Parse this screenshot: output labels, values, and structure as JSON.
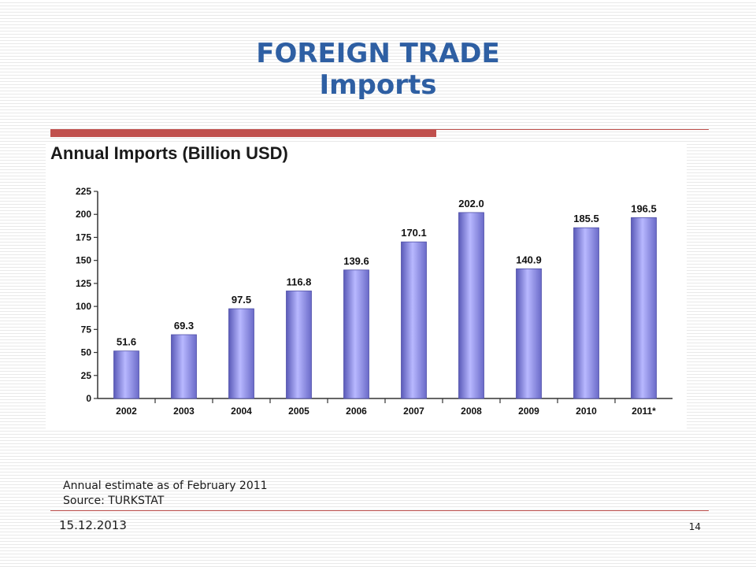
{
  "slide": {
    "title_line1": "FOREIGN TRADE",
    "title_line2": "Imports",
    "note_line1": "Annual estimate as of February 2011",
    "note_line2": "Source: TURKSTAT",
    "date": "15.12.2013",
    "page_number": "14"
  },
  "colors": {
    "title": "#2e5fa3",
    "accent_rule": "#c0504d",
    "bar_gradient": [
      "#5a5ab8",
      "#b8b8ff",
      "#6a6ac8"
    ]
  },
  "chart_data": {
    "type": "bar",
    "title": "Annual Imports (Billion USD)",
    "xlabel": "",
    "ylabel": "",
    "categories": [
      "2002",
      "2003",
      "2004",
      "2005",
      "2006",
      "2007",
      "2008",
      "2009",
      "2010",
      "2011*"
    ],
    "values": [
      51.6,
      69.3,
      97.5,
      116.8,
      139.6,
      170.1,
      202.0,
      140.9,
      185.5,
      196.5
    ],
    "value_labels": [
      "51.6",
      "69.3",
      "97.5",
      "116.8",
      "139.6",
      "170.1",
      "202.0",
      "140.9",
      "185.5",
      "196.5"
    ],
    "ylim": [
      0,
      225
    ],
    "yticks": [
      0,
      25,
      50,
      75,
      100,
      125,
      150,
      175,
      200,
      225
    ],
    "grid": false,
    "legend": "none"
  }
}
